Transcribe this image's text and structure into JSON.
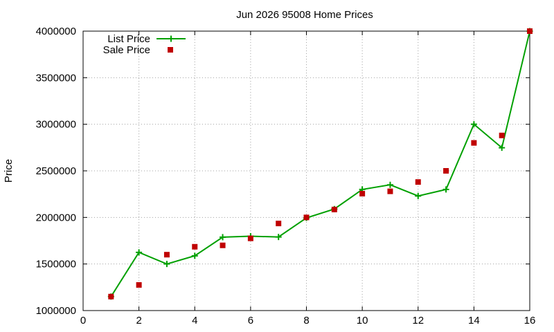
{
  "chart_data": {
    "type": "line",
    "title": "Jun 2026 95008 Home Prices",
    "xlabel": "",
    "ylabel": "Price",
    "xlim": [
      0,
      16
    ],
    "ylim": [
      1000000,
      4000000
    ],
    "x_ticks": [
      "0",
      "2",
      "4",
      "6",
      "8",
      "10",
      "12",
      "14",
      "16"
    ],
    "y_ticks": [
      "1000000",
      "1500000",
      "2000000",
      "2500000",
      "3000000",
      "3500000",
      "4000000"
    ],
    "grid": true,
    "legend_position": "top-left",
    "series": [
      {
        "name": "List Price",
        "style": "line-with-plus-markers",
        "color": "#00a000",
        "x": [
          1,
          2,
          3,
          4,
          5,
          6,
          7,
          8,
          9,
          10,
          11,
          12,
          13,
          14,
          15,
          16
        ],
        "y": [
          1150000,
          1625000,
          1500000,
          1588000,
          1788000,
          1798000,
          1790000,
          1995000,
          2090000,
          2300000,
          2350000,
          2230000,
          2300000,
          3000000,
          2748000,
          4000000
        ]
      },
      {
        "name": "Sale Price",
        "style": "square-markers",
        "color": "#c00000",
        "x": [
          1,
          2,
          3,
          4,
          5,
          6,
          7,
          8,
          9,
          10,
          11,
          12,
          13,
          14,
          15,
          16
        ],
        "y": [
          1150000,
          1275000,
          1600000,
          1685000,
          1700000,
          1775000,
          1935000,
          2000000,
          2085000,
          2255000,
          2280000,
          2380000,
          2500000,
          2800000,
          2880000,
          4000000
        ]
      }
    ]
  }
}
